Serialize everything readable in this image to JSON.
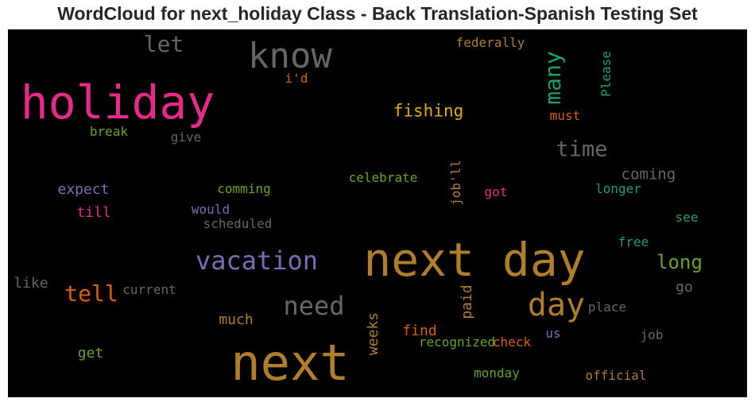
{
  "chart_data": {
    "type": "wordcloud",
    "title": "WordCloud for next_holiday Class - Back Translation-Spanish Testing Set",
    "background": "#000000",
    "words": [
      {
        "text": "next day",
        "color": "#b07d2b"
      },
      {
        "text": "next",
        "color": "#b07d2b"
      },
      {
        "text": "holiday",
        "color": "#e7298a"
      },
      {
        "text": "know",
        "color": "#666666"
      },
      {
        "text": "vacation",
        "color": "#7570b3"
      },
      {
        "text": "day",
        "color": "#b07d2b"
      },
      {
        "text": "time",
        "color": "#666666"
      },
      {
        "text": "tell",
        "color": "#d95f02"
      },
      {
        "text": "need",
        "color": "#666666"
      },
      {
        "text": "many",
        "color": "#1b9e77"
      },
      {
        "text": "let",
        "color": "#666666"
      },
      {
        "text": "long",
        "color": "#66a61e"
      },
      {
        "text": "fishing",
        "color": "#e6ab02"
      },
      {
        "text": "coming",
        "color": "#666666"
      },
      {
        "text": "expect",
        "color": "#7570b3"
      },
      {
        "text": "till",
        "color": "#e7298a"
      },
      {
        "text": "much",
        "color": "#b07d2b"
      },
      {
        "text": "find",
        "color": "#d95f02"
      },
      {
        "text": "get",
        "color": "#66a61e"
      },
      {
        "text": "go",
        "color": "#666666"
      },
      {
        "text": "like",
        "color": "#666666"
      },
      {
        "text": "weeks",
        "color": "#b07d2b"
      },
      {
        "text": "paid",
        "color": "#b07d2b"
      },
      {
        "text": "federally",
        "color": "#b07d2b"
      },
      {
        "text": "celebrate",
        "color": "#66a61e"
      },
      {
        "text": "comming",
        "color": "#66a61e"
      },
      {
        "text": "job'll",
        "color": "#b07d2b"
      },
      {
        "text": "recognized",
        "color": "#66a61e"
      },
      {
        "text": "check",
        "color": "#d95f02"
      },
      {
        "text": "monday",
        "color": "#66a61e"
      },
      {
        "text": "official",
        "color": "#b07d2b"
      },
      {
        "text": "Please",
        "color": "#1b9e77"
      },
      {
        "text": "must",
        "color": "#d95f02"
      },
      {
        "text": "break",
        "color": "#66a61e"
      },
      {
        "text": "give",
        "color": "#666666"
      },
      {
        "text": "i'd",
        "color": "#d95f02"
      },
      {
        "text": "would",
        "color": "#7570b3"
      },
      {
        "text": "scheduled",
        "color": "#666666"
      },
      {
        "text": "got",
        "color": "#e7298a"
      },
      {
        "text": "longer",
        "color": "#1b9e77"
      },
      {
        "text": "see",
        "color": "#1b9e77"
      },
      {
        "text": "free",
        "color": "#1b9e77"
      },
      {
        "text": "current",
        "color": "#666666"
      },
      {
        "text": "place",
        "color": "#666666"
      },
      {
        "text": "us",
        "color": "#7570b3"
      },
      {
        "text": "job",
        "color": "#666666"
      }
    ]
  }
}
